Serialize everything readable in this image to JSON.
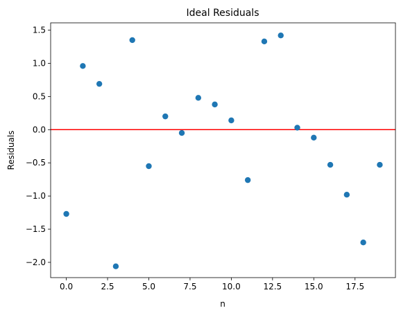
{
  "chart_data": {
    "type": "scatter",
    "title": "Ideal Residuals",
    "xlabel": "n",
    "ylabel": "Residuals",
    "xlim": [
      -0.95,
      19.95
    ],
    "ylim": [
      -2.23,
      1.61
    ],
    "x_ticks": [
      0.0,
      2.5,
      5.0,
      7.5,
      10.0,
      12.5,
      15.0,
      17.5
    ],
    "x_tick_labels": [
      "0.0",
      "2.5",
      "5.0",
      "7.5",
      "10.0",
      "12.5",
      "15.0",
      "17.5"
    ],
    "y_ticks": [
      -2.0,
      -1.5,
      -1.0,
      -0.5,
      0.0,
      0.5,
      1.0,
      1.5
    ],
    "y_tick_labels": [
      "−2.0",
      "−1.5",
      "−1.0",
      "−0.5",
      "0.0",
      "0.5",
      "1.0",
      "1.5"
    ],
    "grid": false,
    "reference_line": {
      "y": 0.0,
      "color": "#ff0000"
    },
    "series": [
      {
        "color": "#1f77b4",
        "x": [
          0,
          1,
          2,
          3,
          4,
          5,
          6,
          7,
          8,
          9,
          10,
          11,
          12,
          13,
          14,
          15,
          16,
          17,
          18,
          19
        ],
        "y": [
          -1.27,
          0.96,
          0.69,
          -2.06,
          1.35,
          -0.55,
          0.2,
          -0.05,
          0.48,
          0.38,
          0.14,
          -0.76,
          1.33,
          1.42,
          0.03,
          -0.12,
          -0.53,
          -0.98,
          -1.7,
          -0.53
        ]
      }
    ]
  }
}
